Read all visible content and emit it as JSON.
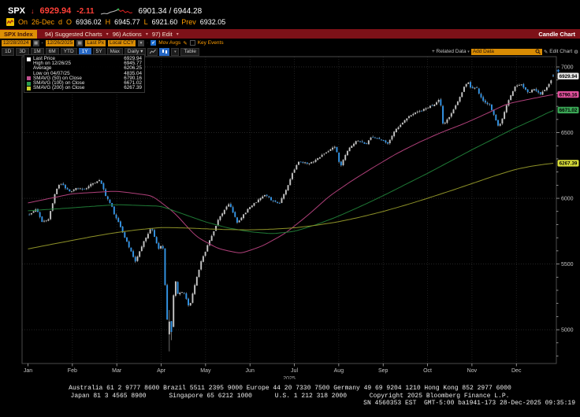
{
  "header": {
    "ticker": "SPX",
    "arrow": "↓",
    "last_price": "6929.94",
    "change": "-2.11",
    "day_range": "6901.34 / 6944.28",
    "session": {
      "on_label": "On",
      "date": "26-Dec",
      "freq": "d",
      "open_label": "O",
      "open": "6936.02",
      "high_label": "H",
      "high": "6945.77",
      "low_label": "L",
      "low": "6921.60",
      "prev_label": "Prev",
      "prev": "6932.05"
    }
  },
  "menubar": {
    "security": "SPX Index",
    "items": [
      {
        "num": "94)",
        "label": "Suggested Charts"
      },
      {
        "num": "96)",
        "label": "Actions"
      },
      {
        "num": "97)",
        "label": "Edit"
      }
    ],
    "right_label": "Candle Chart"
  },
  "controls": {
    "date_from": "12/28/2024",
    "date_sep": "-",
    "date_to": "12/26/2025",
    "field": "Last Px",
    "currency": "Local CCY",
    "mov_avgs_label": "Mov Avgs",
    "key_events_label": "Key Events"
  },
  "tabsbar": {
    "tabs": [
      "1D",
      "3D",
      "1M",
      "6M",
      "YTD",
      "1Y",
      "5Y",
      "Max"
    ],
    "active": "1Y",
    "freq": "Daily",
    "table_label": "Table",
    "related_label": "+ Related Data",
    "add_data_placeholder": "Add Data",
    "edit_chart_label": "Edit Chart"
  },
  "legend": {
    "rows": [
      {
        "marker": "#ffffff",
        "label": "Last Price",
        "value": "6929.94"
      },
      {
        "marker": null,
        "label": "High on 12/26/25",
        "value": "6945.77"
      },
      {
        "marker": null,
        "label": "Average",
        "value": "6206.25"
      },
      {
        "marker": null,
        "label": "Low on 04/07/25",
        "value": "4835.04"
      },
      {
        "marker": "#c0508e",
        "label": "SMAVG (50)  on Close",
        "value": "6790.16"
      },
      {
        "marker": "#2d9e4f",
        "label": "SMAVG (100) on Close",
        "value": "6671.02"
      },
      {
        "marker": "#cdd32b",
        "label": "SMAVG (200) on Close",
        "value": "6267.39"
      }
    ]
  },
  "chart_data": {
    "type": "candlestick",
    "symbol": "SPX Index",
    "title": "Candle Chart",
    "period": "12/28/2024 - 12/26/2025",
    "num_candles": 248,
    "ylim": [
      4743,
      7078
    ],
    "y_ticks": [
      5000,
      5500,
      6000,
      6500,
      7000
    ],
    "months": [
      "Jan",
      "Feb",
      "Mar",
      "Apr",
      "May",
      "Jun",
      "Jul",
      "Aug",
      "Sep",
      "Oct",
      "Nov",
      "Dec"
    ],
    "year_label": "2025",
    "stats": {
      "last": 6929.94,
      "high": 6945.77,
      "high_date": "12/26/25",
      "average": 6206.25,
      "low": 4835.04,
      "low_date": "04/07/25"
    },
    "close_keypoints": [
      [
        0.03,
        5880
      ],
      [
        0.2,
        5910
      ],
      [
        0.32,
        5827
      ],
      [
        0.45,
        5836
      ],
      [
        0.62,
        6049
      ],
      [
        0.72,
        6118
      ],
      [
        0.8,
        6101
      ],
      [
        0.95,
        6041
      ],
      [
        1.1,
        6068
      ],
      [
        1.3,
        6070
      ],
      [
        1.5,
        6115
      ],
      [
        1.62,
        6144
      ],
      [
        1.75,
        6013
      ],
      [
        1.88,
        5955
      ],
      [
        1.95,
        5862
      ],
      [
        2.1,
        5770
      ],
      [
        2.3,
        5615
      ],
      [
        2.42,
        5522
      ],
      [
        2.6,
        5668
      ],
      [
        2.78,
        5777
      ],
      [
        2.95,
        5612
      ],
      [
        3.03,
        5671
      ],
      [
        3.08,
        5396
      ],
      [
        3.12,
        5074
      ],
      [
        3.2,
        5062
      ],
      [
        3.25,
        4983
      ],
      [
        3.3,
        5457
      ],
      [
        3.35,
        5268
      ],
      [
        3.5,
        5283
      ],
      [
        3.63,
        5158
      ],
      [
        3.78,
        5376
      ],
      [
        3.9,
        5525
      ],
      [
        3.97,
        5569
      ],
      [
        4.1,
        5687
      ],
      [
        4.3,
        5845
      ],
      [
        4.53,
        5958
      ],
      [
        4.72,
        5803
      ],
      [
        4.95,
        5912
      ],
      [
        5.15,
        5970
      ],
      [
        5.35,
        6039
      ],
      [
        5.5,
        5981
      ],
      [
        5.67,
        5968
      ],
      [
        5.85,
        6092
      ],
      [
        5.97,
        6205
      ],
      [
        6.1,
        6280
      ],
      [
        6.3,
        6259
      ],
      [
        6.5,
        6297
      ],
      [
        6.75,
        6363
      ],
      [
        6.9,
        6389
      ],
      [
        6.97,
        6339
      ],
      [
        7.03,
        6238
      ],
      [
        7.2,
        6373
      ],
      [
        7.4,
        6446
      ],
      [
        7.6,
        6411
      ],
      [
        7.75,
        6466
      ],
      [
        7.95,
        6460
      ],
      [
        8.1,
        6415
      ],
      [
        8.3,
        6532
      ],
      [
        8.55,
        6606
      ],
      [
        8.75,
        6664
      ],
      [
        8.97,
        6688
      ],
      [
        9.15,
        6715
      ],
      [
        9.28,
        6754
      ],
      [
        9.35,
        6553
      ],
      [
        9.5,
        6629
      ],
      [
        9.7,
        6735
      ],
      [
        9.85,
        6875
      ],
      [
        9.93,
        6891
      ],
      [
        9.97,
        6840
      ],
      [
        10.1,
        6852
      ],
      [
        10.25,
        6737
      ],
      [
        10.4,
        6721
      ],
      [
        10.6,
        6539
      ],
      [
        10.68,
        6603
      ],
      [
        10.85,
        6765
      ],
      [
        10.97,
        6849
      ],
      [
        11.1,
        6871
      ],
      [
        11.25,
        6800
      ],
      [
        11.4,
        6829
      ],
      [
        11.55,
        6775
      ],
      [
        11.7,
        6850
      ],
      [
        11.78,
        6890
      ],
      [
        11.83,
        6929.94
      ]
    ],
    "specials": [
      {
        "t": 1.62,
        "high": 6147.43
      },
      {
        "t": 3.2,
        "open": 4965,
        "high": 5150,
        "low": 4835.04,
        "close": 5062
      },
      {
        "t": 3.25,
        "low": 4920,
        "close": 4983
      },
      {
        "t": 11.83,
        "open": 6936.02,
        "high": 6945.77,
        "low": 6921.6,
        "close": 6929.94
      }
    ],
    "smavg": [
      {
        "name": "SMAVG (50) on Close",
        "value": 6790.16,
        "color": "#b0407a",
        "badge": "#e0519c",
        "points": [
          [
            0,
            5965
          ],
          [
            1,
            6035
          ],
          [
            2,
            6055
          ],
          [
            2.8,
            6020
          ],
          [
            3.3,
            5890
          ],
          [
            3.8,
            5705
          ],
          [
            4.3,
            5615
          ],
          [
            4.8,
            5580
          ],
          [
            5.3,
            5640
          ],
          [
            5.8,
            5735
          ],
          [
            6.3,
            5870
          ],
          [
            6.8,
            6020
          ],
          [
            7.3,
            6135
          ],
          [
            7.8,
            6240
          ],
          [
            8.3,
            6340
          ],
          [
            8.8,
            6425
          ],
          [
            9.3,
            6500
          ],
          [
            9.8,
            6565
          ],
          [
            10.3,
            6640
          ],
          [
            10.8,
            6720
          ],
          [
            11.3,
            6755
          ],
          [
            11.83,
            6790.16
          ]
        ]
      },
      {
        "name": "SMAVG (100) on Close",
        "value": 6671.02,
        "color": "#1f7a36",
        "badge": "#3aa655",
        "points": [
          [
            0,
            5905
          ],
          [
            1,
            5928
          ],
          [
            2,
            5952
          ],
          [
            3,
            5940
          ],
          [
            3.5,
            5880
          ],
          [
            4,
            5820
          ],
          [
            4.5,
            5775
          ],
          [
            5,
            5745
          ],
          [
            5.5,
            5730
          ],
          [
            6,
            5748
          ],
          [
            6.5,
            5800
          ],
          [
            7,
            5865
          ],
          [
            7.5,
            5940
          ],
          [
            8,
            6020
          ],
          [
            8.5,
            6105
          ],
          [
            9,
            6190
          ],
          [
            9.5,
            6280
          ],
          [
            10,
            6370
          ],
          [
            10.5,
            6455
          ],
          [
            11,
            6540
          ],
          [
            11.4,
            6600
          ],
          [
            11.83,
            6671.02
          ]
        ]
      },
      {
        "name": "SMAVG (200) on Close",
        "value": 6267.39,
        "color": "#8e9228",
        "badge": "#d9de3a",
        "points": [
          [
            0,
            5615
          ],
          [
            0.5,
            5648
          ],
          [
            1,
            5680
          ],
          [
            1.5,
            5712
          ],
          [
            2,
            5740
          ],
          [
            2.5,
            5762
          ],
          [
            3,
            5778
          ],
          [
            3.5,
            5775
          ],
          [
            4,
            5768
          ],
          [
            4.5,
            5762
          ],
          [
            5,
            5760
          ],
          [
            5.5,
            5765
          ],
          [
            6,
            5775
          ],
          [
            6.5,
            5795
          ],
          [
            7,
            5822
          ],
          [
            7.5,
            5858
          ],
          [
            8,
            5900
          ],
          [
            8.5,
            5948
          ],
          [
            9,
            6000
          ],
          [
            9.5,
            6055
          ],
          [
            10,
            6112
          ],
          [
            10.5,
            6170
          ],
          [
            11,
            6222
          ],
          [
            11.4,
            6248
          ],
          [
            11.83,
            6267.39
          ]
        ]
      }
    ],
    "colors": {
      "up": "#c6c6c6",
      "down": "#3496e8",
      "wick": "#9b9b9b",
      "grid_h": "#3c3c3c",
      "grid_v": "#2c2c2c",
      "border": "#4a4a4a",
      "axis_text": "#c4c4c4",
      "last_badge": "#ececec",
      "plus_marker": "#3ea0ff"
    }
  },
  "footer": {
    "line1": "Australia 61 2 9777 8600 Brazil 5511 2395 9000 Europe 44 20 7330 7500 Germany 49 69 9204 1210 Hong Kong 852 2977 6000",
    "line2": "Japan 81 3 4565 8900      Singapore 65 6212 1000      U.S. 1 212 318 2000      Copyright 2025 Bloomberg Finance L.P.",
    "line3": "SN 4560353 EST  GMT-5:00 ba1941-173 28-Dec-2025 09:35:19"
  }
}
